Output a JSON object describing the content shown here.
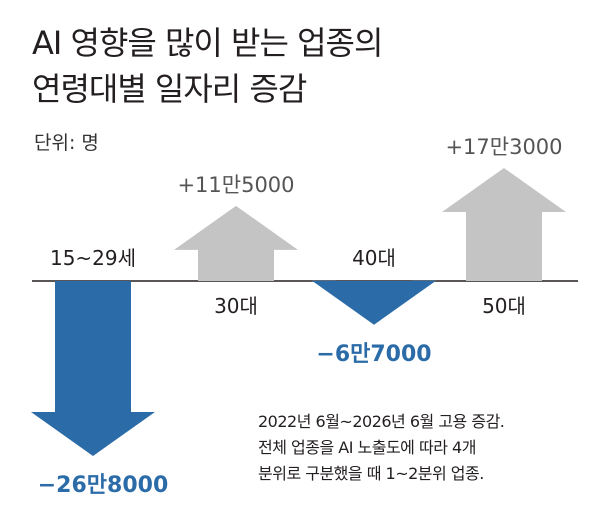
{
  "title_lines": [
    "AI 영향을 많이 받는 업종의",
    "연령대별 일자리 증감"
  ],
  "unit_label": "단위: 명",
  "note_lines": [
    "2022년 6월~2026년 6월 고용 증감.",
    "전체 업종을 AI 노출도에 따라 4개",
    "분위로 구분했을 때 1~2분위 업종."
  ],
  "colors": {
    "negative": "#2b6ca8",
    "positive": "#c4c4c4",
    "negative_text": "#2b6ca8",
    "axis": "#231f20"
  },
  "chart_data": {
    "type": "bar",
    "categories": [
      "15~29세",
      "30대",
      "40대",
      "50대"
    ],
    "values": [
      -268000,
      115000,
      -67000,
      173000
    ],
    "value_labels": [
      "−26만8000",
      "+11만5000",
      "−6만7000",
      "+17만3000"
    ],
    "title": "",
    "xlabel": "",
    "ylabel": "",
    "grid": false
  }
}
